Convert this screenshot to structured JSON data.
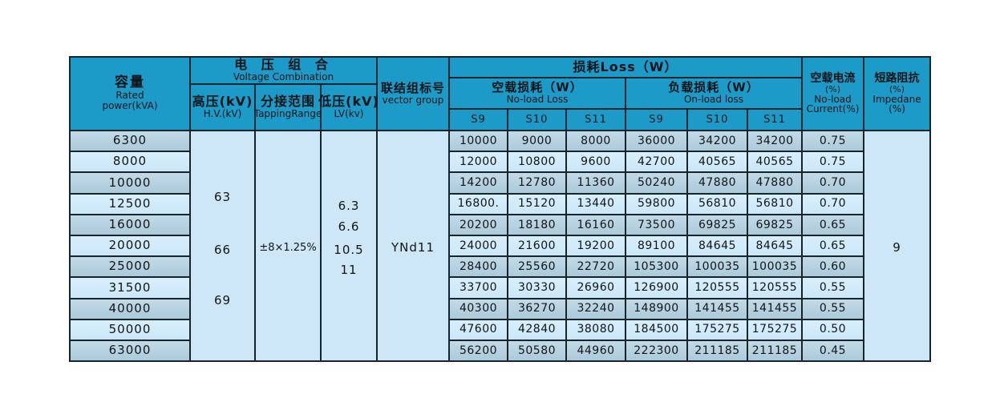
{
  "header": {
    "capacity": {
      "zh": "容量",
      "en1": "Rated",
      "en2": "power(kVA)"
    },
    "voltage_combination": {
      "zh": "电 压 组 合",
      "en": "Voltage Combination"
    },
    "hv": {
      "zh": "高压(kV)",
      "en": "H.V.(kV)"
    },
    "tapping": {
      "zh": "分接范围",
      "en": "TappingRange"
    },
    "lv": {
      "zh": "低压(kV)",
      "en": "LV(kv)"
    },
    "vector": {
      "zh": "联结组标号",
      "en": "vector group"
    },
    "loss": {
      "zh": "损耗Loss（W）"
    },
    "no_load_loss": {
      "zh": "空载损耗（W）",
      "en": "No-load Loss"
    },
    "on_load_loss": {
      "zh": "负载损耗（W）",
      "en": "On-load loss"
    },
    "s_cols": [
      "S9",
      "S10",
      "S11",
      "S9",
      "S10",
      "S11"
    ],
    "no_load_current": {
      "zh": "空载电流",
      "l2": "(%)",
      "l3": "No-load",
      "l4": "Current(%)"
    },
    "impedance": {
      "zh": "短路阻抗",
      "l2": "(%)",
      "l3": "Impedane",
      "l4": "(%)"
    }
  },
  "merged": {
    "hv_values": [
      "63",
      "66",
      "69"
    ],
    "tapping_value": "±8×1.25%",
    "lv_values": [
      "6.3",
      "6.6",
      "10.5",
      "11"
    ],
    "vector_value": "YNd11",
    "impedance_value": "9"
  },
  "rows": [
    {
      "power": "6300",
      "nl": [
        "10000",
        "9000",
        "8000"
      ],
      "ol": [
        "36000",
        "34200",
        "34200"
      ],
      "current": "0.75"
    },
    {
      "power": "8000",
      "nl": [
        "12000",
        "10800",
        "9600"
      ],
      "ol": [
        "42700",
        "40565",
        "40565"
      ],
      "current": "0.75"
    },
    {
      "power": "10000",
      "nl": [
        "14200",
        "12780",
        "11360"
      ],
      "ol": [
        "50240",
        "47880",
        "47880"
      ],
      "current": "0.70"
    },
    {
      "power": "12500",
      "nl": [
        "16800.",
        "15120",
        "13440"
      ],
      "ol": [
        "59800",
        "56810",
        "56810"
      ],
      "current": "0.70"
    },
    {
      "power": "16000",
      "nl": [
        "20200",
        "18180",
        "16160"
      ],
      "ol": [
        "73500",
        "69825",
        "69825"
      ],
      "current": "0.65"
    },
    {
      "power": "20000",
      "nl": [
        "24000",
        "21600",
        "19200"
      ],
      "ol": [
        "89100",
        "84645",
        "84645"
      ],
      "current": "0.65"
    },
    {
      "power": "25000",
      "nl": [
        "28400",
        "25560",
        "22720"
      ],
      "ol": [
        "105300",
        "100035",
        "100035"
      ],
      "current": "0.60"
    },
    {
      "power": "31500",
      "nl": [
        "33700",
        "30330",
        "26960"
      ],
      "ol": [
        "126900",
        "120555",
        "120555"
      ],
      "current": "0.55"
    },
    {
      "power": "40000",
      "nl": [
        "40300",
        "36270",
        "32240"
      ],
      "ol": [
        "148900",
        "141455",
        "141455"
      ],
      "current": "0.55"
    },
    {
      "power": "50000",
      "nl": [
        "47600",
        "42840",
        "38080"
      ],
      "ol": [
        "184500",
        "175275",
        "175275"
      ],
      "current": "0.50"
    },
    {
      "power": "63000",
      "nl": [
        "56200",
        "50580",
        "44960"
      ],
      "ol": [
        "222300",
        "211185",
        "211185"
      ],
      "current": "0.45"
    }
  ],
  "colors": {
    "header_bg": "#1d9bc8",
    "row_dark": "#b2cfdd",
    "row_light": "#d0eafa",
    "merged_bg": "#cde7f6",
    "border": "#16242b"
  },
  "chart_data": {
    "type": "table",
    "title": "电力变压器技术参数表 (Power transformer specification table)",
    "columns": [
      "容量 Rated power(kVA)",
      "高压(kV) H.V.(kV)",
      "分接范围 TappingRange",
      "低压(kV) LV(kv)",
      "联结组标号 vector group",
      "空载损耗 No-load Loss S9",
      "空载损耗 S10",
      "空载损耗 S11",
      "负载损耗 On-load loss S9",
      "负载损耗 S10",
      "负载损耗 S11",
      "空载电流 No-load Current(%)",
      "短路阻抗 Impedane(%)"
    ],
    "shared_values": {
      "hv_kv": [
        63,
        66,
        69
      ],
      "tapping_range": "±8×1.25%",
      "lv_kv": [
        6.3,
        6.6,
        10.5,
        11
      ],
      "vector_group": "YNd11",
      "impedance_pct": 9
    },
    "rows": [
      [
        6300,
        10000,
        9000,
        8000,
        36000,
        34200,
        34200,
        0.75
      ],
      [
        8000,
        12000,
        10800,
        9600,
        42700,
        40565,
        40565,
        0.75
      ],
      [
        10000,
        14200,
        12780,
        11360,
        50240,
        47880,
        47880,
        0.7
      ],
      [
        12500,
        16800,
        15120,
        13440,
        59800,
        56810,
        56810,
        0.7
      ],
      [
        16000,
        20200,
        18180,
        16160,
        73500,
        69825,
        69825,
        0.65
      ],
      [
        20000,
        24000,
        21600,
        19200,
        89100,
        84645,
        84645,
        0.65
      ],
      [
        25000,
        28400,
        25560,
        22720,
        105300,
        100035,
        100035,
        0.6
      ],
      [
        31500,
        33700,
        30330,
        26960,
        126900,
        120555,
        120555,
        0.55
      ],
      [
        40000,
        40300,
        36270,
        32240,
        148900,
        141455,
        141455,
        0.55
      ],
      [
        50000,
        47600,
        42840,
        38080,
        184500,
        175275,
        175275,
        0.5
      ],
      [
        63000,
        56200,
        50580,
        44960,
        222300,
        211185,
        211185,
        0.45
      ]
    ]
  }
}
